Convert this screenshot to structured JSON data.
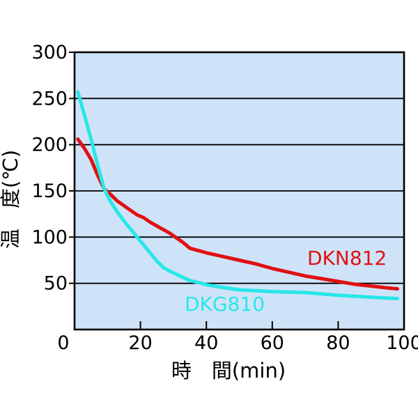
{
  "chart_data": {
    "type": "line",
    "title": "",
    "xlabel": "時　間(min)",
    "ylabel": "温　度(℃)",
    "xlim": [
      0,
      100
    ],
    "ylim": [
      0,
      300
    ],
    "x_ticks": [
      0,
      20,
      40,
      60,
      80,
      100
    ],
    "y_ticks": [
      300,
      250,
      200,
      150,
      100,
      50
    ],
    "grid": "horizontal",
    "legend_position": "inline-labels",
    "plot_bg_color": "#cfe3f8",
    "gridline_color": "#000000",
    "series": [
      {
        "name": "DKN812",
        "color": "#e01111",
        "points": [
          [
            1,
            206
          ],
          [
            3,
            196
          ],
          [
            5,
            184
          ],
          [
            7,
            167
          ],
          [
            9,
            152
          ],
          [
            11,
            146
          ],
          [
            13,
            139
          ],
          [
            15,
            134
          ],
          [
            17,
            129
          ],
          [
            19,
            124
          ],
          [
            21,
            121
          ],
          [
            23,
            116
          ],
          [
            25,
            112
          ],
          [
            27,
            108
          ],
          [
            29,
            104
          ],
          [
            31,
            99
          ],
          [
            33,
            94
          ],
          [
            35,
            88
          ],
          [
            38,
            85
          ],
          [
            40,
            83
          ],
          [
            45,
            79
          ],
          [
            50,
            75
          ],
          [
            55,
            71
          ],
          [
            60,
            66
          ],
          [
            65,
            62
          ],
          [
            70,
            58
          ],
          [
            75,
            55
          ],
          [
            80,
            52
          ],
          [
            85,
            49
          ],
          [
            90,
            47
          ],
          [
            95,
            45
          ],
          [
            98,
            44
          ]
        ]
      },
      {
        "name": "DKG810",
        "color": "#28e7e7",
        "points": [
          [
            1,
            257
          ],
          [
            3,
            232
          ],
          [
            5,
            206
          ],
          [
            7,
            178
          ],
          [
            9,
            152
          ],
          [
            11,
            138
          ],
          [
            13,
            127
          ],
          [
            16,
            113
          ],
          [
            19,
            100
          ],
          [
            22,
            87
          ],
          [
            25,
            74
          ],
          [
            27,
            67
          ],
          [
            29,
            63
          ],
          [
            32,
            58
          ],
          [
            35,
            53
          ],
          [
            38,
            50.5
          ],
          [
            40,
            48.5
          ],
          [
            45,
            45.5
          ],
          [
            48,
            44
          ],
          [
            50,
            43
          ],
          [
            55,
            42
          ],
          [
            60,
            41
          ],
          [
            65,
            40.5
          ],
          [
            70,
            40
          ],
          [
            75,
            38.5
          ],
          [
            80,
            37
          ],
          [
            85,
            36
          ],
          [
            90,
            35
          ],
          [
            95,
            34
          ],
          [
            98,
            33.5
          ]
        ]
      }
    ]
  }
}
